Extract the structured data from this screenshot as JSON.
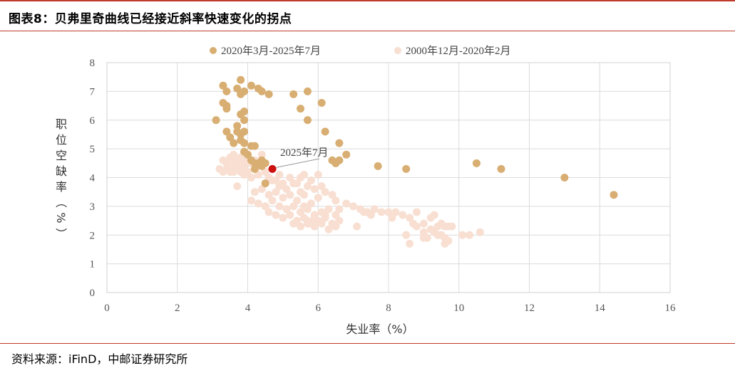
{
  "header": {
    "title": "图表8：贝弗里奇曲线已经接近斜率快速变化的拐点"
  },
  "footer": {
    "source": "资料来源：iFinD，中邮证券研究所"
  },
  "colors": {
    "accent": "#c0392b",
    "recent": "#d8ae72",
    "historical": "#f8dfd2",
    "highlight": "#cc1111",
    "grid": "#dcdcdc"
  },
  "chart_data": {
    "type": "scatter",
    "xlabel": "失业率（%）",
    "ylabel": "职位空缺率（%）",
    "xlim": [
      0,
      16
    ],
    "ylim": [
      0,
      8
    ],
    "x_ticks": [
      "0",
      "2",
      "4",
      "6",
      "8",
      "10",
      "12",
      "14",
      "16"
    ],
    "y_ticks": [
      "0",
      "1",
      "2",
      "3",
      "4",
      "5",
      "6",
      "7",
      "8"
    ],
    "grid": true,
    "legend_position": "top",
    "annotation": {
      "text": "2025年7月",
      "x": 4.7,
      "y": 4.3
    },
    "series": [
      {
        "name": "2000年12月-2020年2月",
        "color": "#f8dfd2",
        "points": [
          [
            3.3,
            4.6
          ],
          [
            3.4,
            4.5
          ],
          [
            3.5,
            4.7
          ],
          [
            3.6,
            4.6
          ],
          [
            3.6,
            4.8
          ],
          [
            3.7,
            4.5
          ],
          [
            3.8,
            4.7
          ],
          [
            3.9,
            4.6
          ],
          [
            3.9,
            4.4
          ],
          [
            4.0,
            4.5
          ],
          [
            4.0,
            4.7
          ],
          [
            4.1,
            4.5
          ],
          [
            4.2,
            4.6
          ],
          [
            4.3,
            4.4
          ],
          [
            4.4,
            4.5
          ],
          [
            4.4,
            4.8
          ],
          [
            3.4,
            4.3
          ],
          [
            3.5,
            4.2
          ],
          [
            3.6,
            4.4
          ],
          [
            3.8,
            4.2
          ],
          [
            3.9,
            4.1
          ],
          [
            4.0,
            4.2
          ],
          [
            4.1,
            4.0
          ],
          [
            4.2,
            4.3
          ],
          [
            4.3,
            4.1
          ],
          [
            4.5,
            4.2
          ],
          [
            4.6,
            4.0
          ],
          [
            4.8,
            3.9
          ],
          [
            5.0,
            3.8
          ],
          [
            5.2,
            4.0
          ],
          [
            5.4,
            3.8
          ],
          [
            5.6,
            4.1
          ],
          [
            4.5,
            3.8
          ],
          [
            4.7,
            3.9
          ],
          [
            4.9,
            3.7
          ],
          [
            5.1,
            3.6
          ],
          [
            5.3,
            3.8
          ],
          [
            5.5,
            3.5
          ],
          [
            5.7,
            3.7
          ],
          [
            5.9,
            3.6
          ],
          [
            3.7,
            3.7
          ],
          [
            4.2,
            3.5
          ],
          [
            4.4,
            3.6
          ],
          [
            4.6,
            3.4
          ],
          [
            4.8,
            3.5
          ],
          [
            5.0,
            3.3
          ],
          [
            5.2,
            3.4
          ],
          [
            5.4,
            3.2
          ],
          [
            5.6,
            3.4
          ],
          [
            5.8,
            3.1
          ],
          [
            6.0,
            3.3
          ],
          [
            6.2,
            3.5
          ],
          [
            6.4,
            3.4
          ],
          [
            6.1,
            3.7
          ],
          [
            6.5,
            3.2
          ],
          [
            4.1,
            3.2
          ],
          [
            4.3,
            3.1
          ],
          [
            4.5,
            3.0
          ],
          [
            4.7,
            3.2
          ],
          [
            4.9,
            3.0
          ],
          [
            5.1,
            2.9
          ],
          [
            5.3,
            3.0
          ],
          [
            5.5,
            2.8
          ],
          [
            5.7,
            2.9
          ],
          [
            5.9,
            2.7
          ],
          [
            6.1,
            2.8
          ],
          [
            6.3,
            2.9
          ],
          [
            6.6,
            2.9
          ],
          [
            6.8,
            3.1
          ],
          [
            7.0,
            3.0
          ],
          [
            4.6,
            2.8
          ],
          [
            4.8,
            2.7
          ],
          [
            5.0,
            2.6
          ],
          [
            5.2,
            2.7
          ],
          [
            5.4,
            2.5
          ],
          [
            5.6,
            2.6
          ],
          [
            5.8,
            2.4
          ],
          [
            6.0,
            2.5
          ],
          [
            6.2,
            2.6
          ],
          [
            6.4,
            2.4
          ],
          [
            6.6,
            2.5
          ],
          [
            5.3,
            2.4
          ],
          [
            5.5,
            2.3
          ],
          [
            5.7,
            2.5
          ],
          [
            5.9,
            2.3
          ],
          [
            6.1,
            2.4
          ],
          [
            6.3,
            2.2
          ],
          [
            6.5,
            2.3
          ],
          [
            7.1,
            2.3
          ],
          [
            7.2,
            2.9
          ],
          [
            7.4,
            2.8
          ],
          [
            7.6,
            2.9
          ],
          [
            7.8,
            2.8
          ],
          [
            8.0,
            2.8
          ],
          [
            8.2,
            2.8
          ],
          [
            8.4,
            2.7
          ],
          [
            8.6,
            2.6
          ],
          [
            8.8,
            2.8
          ],
          [
            8.1,
            2.6
          ],
          [
            7.5,
            2.7
          ],
          [
            8.7,
            2.4
          ],
          [
            9.0,
            2.4
          ],
          [
            9.2,
            2.6
          ],
          [
            9.3,
            2.7
          ],
          [
            9.4,
            2.3
          ],
          [
            9.5,
            2.4
          ],
          [
            9.6,
            2.3
          ],
          [
            9.7,
            2.3
          ],
          [
            9.5,
            2.0
          ],
          [
            9.6,
            1.9
          ],
          [
            9.7,
            1.8
          ],
          [
            9.6,
            1.7
          ],
          [
            9.8,
            2.3
          ],
          [
            9.4,
            2.0
          ],
          [
            9.2,
            2.2
          ],
          [
            9.0,
            2.1
          ],
          [
            8.8,
            2.3
          ],
          [
            9.1,
            1.9
          ],
          [
            10.1,
            2.0
          ],
          [
            10.3,
            2.0
          ],
          [
            10.6,
            2.1
          ],
          [
            8.5,
            2.0
          ],
          [
            8.6,
            1.7
          ],
          [
            9.3,
            2.1
          ],
          [
            9.0,
            1.9
          ],
          [
            3.2,
            4.3
          ],
          [
            3.6,
            4.2
          ],
          [
            3.3,
            4.2
          ],
          [
            3.8,
            4.4
          ],
          [
            6.0,
            4.1
          ],
          [
            5.8,
            3.9
          ],
          [
            5.5,
            4.0
          ],
          [
            3.7,
            4.3
          ],
          [
            4.9,
            4.1
          ],
          [
            5.6,
            3.0
          ],
          [
            5.7,
            2.4
          ],
          [
            5.9,
            2.6
          ],
          [
            6.2,
            2.7
          ],
          [
            6.5,
            2.7
          ],
          [
            7.3,
            2.8
          ]
        ]
      },
      {
        "name": "2020年3月-2025年7月",
        "color": "#d8ae72",
        "points": [
          [
            3.1,
            6.0
          ],
          [
            3.3,
            7.2
          ],
          [
            3.4,
            7.0
          ],
          [
            3.3,
            6.6
          ],
          [
            3.4,
            6.5
          ],
          [
            3.4,
            6.4
          ],
          [
            3.8,
            7.4
          ],
          [
            3.7,
            7.1
          ],
          [
            3.8,
            6.9
          ],
          [
            3.9,
            7.0
          ],
          [
            4.1,
            7.2
          ],
          [
            4.3,
            7.1
          ],
          [
            4.4,
            7.0
          ],
          [
            4.6,
            6.9
          ],
          [
            3.8,
            6.2
          ],
          [
            3.9,
            6.3
          ],
          [
            3.9,
            6.0
          ],
          [
            3.7,
            5.8
          ],
          [
            3.7,
            5.6
          ],
          [
            3.8,
            5.5
          ],
          [
            3.9,
            5.6
          ],
          [
            3.4,
            5.6
          ],
          [
            3.5,
            5.4
          ],
          [
            3.6,
            5.2
          ],
          [
            3.8,
            5.3
          ],
          [
            3.9,
            5.2
          ],
          [
            4.1,
            5.1
          ],
          [
            4.2,
            5.1
          ],
          [
            3.9,
            4.9
          ],
          [
            4.0,
            4.8
          ],
          [
            4.1,
            4.6
          ],
          [
            4.2,
            4.5
          ],
          [
            4.3,
            4.5
          ],
          [
            4.4,
            4.6
          ],
          [
            4.5,
            4.5
          ],
          [
            4.2,
            4.3
          ],
          [
            4.4,
            4.4
          ],
          [
            4.5,
            3.8
          ],
          [
            5.3,
            6.9
          ],
          [
            5.7,
            7.0
          ],
          [
            5.5,
            6.4
          ],
          [
            5.7,
            6.0
          ],
          [
            6.1,
            6.6
          ],
          [
            6.2,
            5.6
          ],
          [
            6.6,
            5.2
          ],
          [
            6.8,
            4.8
          ],
          [
            6.4,
            4.6
          ],
          [
            6.5,
            4.5
          ],
          [
            6.6,
            4.6
          ],
          [
            7.7,
            4.4
          ],
          [
            8.5,
            4.3
          ],
          [
            10.5,
            4.5
          ],
          [
            11.2,
            4.3
          ],
          [
            13.0,
            4.0
          ],
          [
            14.4,
            3.4
          ]
        ]
      },
      {
        "name": "",
        "color": "#cc1111",
        "points": [
          [
            4.7,
            4.3
          ]
        ]
      }
    ]
  }
}
